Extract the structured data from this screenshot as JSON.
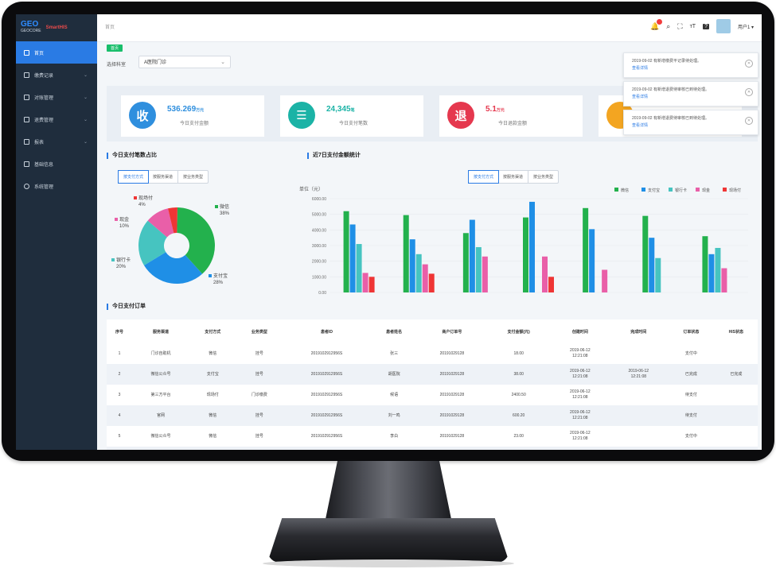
{
  "sidebar": {
    "logo_text": "GEO",
    "logo_sub": "GEOCORE",
    "brand": "SmartHIS",
    "items": [
      {
        "label": "首页"
      },
      {
        "label": "缴费记录"
      },
      {
        "label": "对账管理"
      },
      {
        "label": "退费管理"
      },
      {
        "label": "报表"
      },
      {
        "label": "基础信息"
      },
      {
        "label": "系统管理"
      }
    ]
  },
  "topbar": {
    "breadcrumb": "首页",
    "username": "用户1 ▾",
    "notification_count": "1"
  },
  "main": {
    "tag": "首页",
    "filter_label": "选择科室",
    "filter_value": "A医院门诊",
    "stats": [
      {
        "icon": "收",
        "value": "536.269",
        "unit": "万元",
        "label": "今日支付金额",
        "color": "#2f8fde"
      },
      {
        "icon": "☰",
        "value": "24,345",
        "unit": "笔",
        "label": "今日支付笔数",
        "color": "#1bb3a6"
      },
      {
        "icon": "退",
        "value": "5.1",
        "unit": "万元",
        "label": "今日退款金额",
        "color": "#e5384e"
      },
      {
        "icon": "",
        "value": "",
        "unit": "",
        "label": "",
        "color": "#f3a521"
      }
    ],
    "donut_title": "今日支付笔数占比",
    "donut_tabs": [
      "按支付方式",
      "按服务渠道",
      "按业务类型"
    ],
    "bar_title": "近7日支付金额统计",
    "bar_tabs": [
      "按支付方式",
      "按服务渠道",
      "按业务类型"
    ],
    "table_title": "今日支付订单"
  },
  "chart_data": [
    {
      "type": "pie",
      "labels": [
        "微信",
        "支付宝",
        "银行卡",
        "现金",
        "现场付"
      ],
      "values": [
        38,
        28,
        20,
        10,
        4
      ],
      "label_texts": [
        "38%",
        "28%",
        "20%",
        "10%",
        "4%"
      ],
      "colors": [
        "#23b14d",
        "#1f8fe6",
        "#46c4c0",
        "#e95fa8",
        "#ef3535"
      ]
    },
    {
      "type": "bar",
      "ylabel": "单位（元）",
      "categories": [
        "12-01",
        "12-02",
        "12-03",
        "12-04",
        "12-05",
        "12-06",
        "12-07"
      ],
      "ylim": [
        0,
        6000
      ],
      "yticks": [
        "0.00",
        "1000.00",
        "2000.00",
        "3000.00",
        "4000.00",
        "5000.00",
        "6000.00"
      ],
      "series": [
        {
          "name": "微信",
          "color": "#23b14d",
          "values": [
            5200,
            4950,
            3800,
            4800,
            5400,
            4900,
            3600
          ]
        },
        {
          "name": "支付宝",
          "color": "#1f8fe6",
          "values": [
            4350,
            3400,
            4650,
            5800,
            4050,
            3500,
            2450
          ]
        },
        {
          "name": "银行卡",
          "color": "#46c4c0",
          "values": [
            3100,
            2450,
            2900,
            0,
            0,
            2200,
            2850
          ]
        },
        {
          "name": "现金",
          "color": "#e95fa8",
          "values": [
            1250,
            1800,
            2300,
            2300,
            1450,
            0,
            1550
          ]
        },
        {
          "name": "现场付",
          "color": "#ef3535",
          "values": [
            1000,
            1200,
            0,
            1000,
            0,
            0,
            0
          ]
        }
      ]
    }
  ],
  "table": {
    "headers": [
      "序号",
      "服务渠道",
      "支付方式",
      "业务类型",
      "患者ID",
      "患者姓名",
      "商户订单号",
      "支付金额(元)",
      "创建时间",
      "完成时间",
      "订单状态",
      "HIS状态"
    ],
    "rows": [
      [
        "1",
        "门诊自助机",
        "微信",
        "挂号",
        "2019102912956S",
        "张三",
        "20191029128",
        "18.00",
        "2019-06-12\n12:21:08",
        "",
        "支付中",
        ""
      ],
      [
        "2",
        "微信公众号",
        "支付宝",
        "挂号",
        "2019102912956S",
        "胡医院",
        "20191029128",
        "38.00",
        "2019-06-12\n12:21:08",
        "2019-06-12\n12:21:08",
        "已完成",
        "已完成"
      ],
      [
        "3",
        "第三方平台",
        "现场付",
        "门诊缴费",
        "2019102912956S",
        "候语",
        "20191029128",
        "2400.50",
        "2019-06-12\n12:21:08",
        "",
        "待支付",
        ""
      ],
      [
        "4",
        "官网",
        "微信",
        "挂号",
        "2019102912956S",
        "刘一鸣",
        "20191029128",
        "600.20",
        "2019-06-12\n12:21:08",
        "",
        "待支付",
        ""
      ],
      [
        "5",
        "微信公众号",
        "微信",
        "挂号",
        "2019102912956S",
        "李白",
        "20191029128",
        "23.00",
        "2019-06-12\n12:21:08",
        "",
        "支付中",
        ""
      ],
      [
        "6",
        "门诊自助机",
        "银行卡",
        "门诊缴费",
        "2019102912956S",
        "胡晓霞",
        "20191029128",
        "606.08",
        "2019-06-12\n12:21:08",
        "2019-06-12\n12:21:08",
        "已完成",
        "已完成"
      ]
    ]
  },
  "notifications": [
    {
      "text": "2019-09-02 有新增缴费平记录待处理。",
      "link": "查看详情"
    },
    {
      "text": "2019-09-02 有新增退费待审核已到待处理。",
      "link": "查看详情"
    },
    {
      "text": "2019-09-02 有新增退费待审核已到待处理。",
      "link": "查看详情"
    }
  ]
}
